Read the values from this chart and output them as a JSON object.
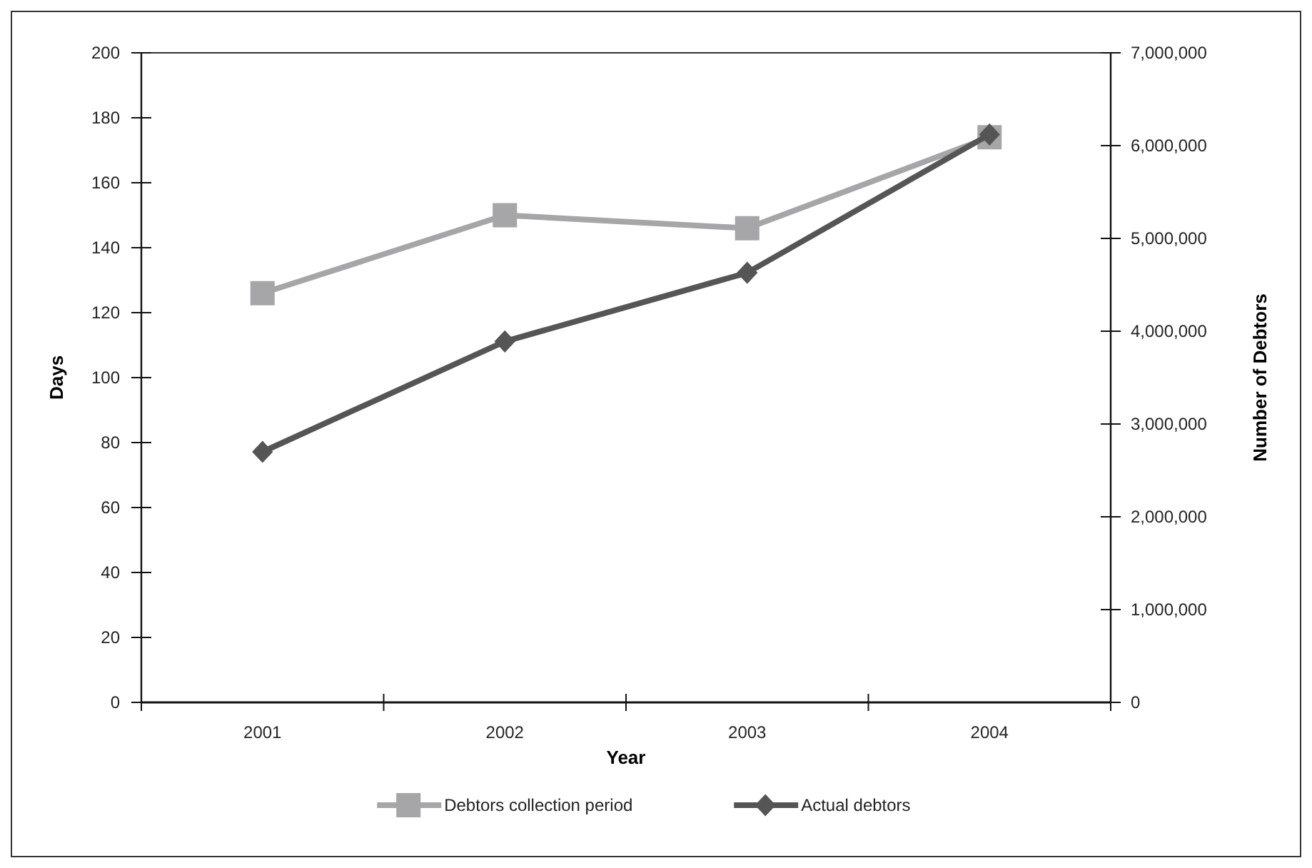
{
  "chart_data": {
    "type": "line",
    "xlabel": "Year",
    "ylabel": "Days",
    "y2label": "Number of Debtors",
    "categories": [
      "2001",
      "2002",
      "2003",
      "2004"
    ],
    "ylim": [
      0,
      200
    ],
    "yticks": [
      0,
      20,
      40,
      60,
      80,
      100,
      120,
      140,
      160,
      180,
      200
    ],
    "y2lim": [
      0,
      7000000
    ],
    "y2ticks": [
      {
        "value": 0,
        "label": "0"
      },
      {
        "value": 1000000,
        "label": "1,000,000"
      },
      {
        "value": 2000000,
        "label": "2,000,000"
      },
      {
        "value": 3000000,
        "label": "3,000,000"
      },
      {
        "value": 4000000,
        "label": "4,000,000"
      },
      {
        "value": 5000000,
        "label": "5,000,000"
      },
      {
        "value": 6000000,
        "label": "6,000,000"
      },
      {
        "value": 7000000,
        "label": "7,000,000"
      }
    ],
    "series": [
      {
        "name": "Debtors collection period",
        "color": "#a6a6a8",
        "marker": "square",
        "values": [
          126,
          150,
          146,
          174
        ]
      },
      {
        "name": "Actual debtors",
        "color": "#555555",
        "marker": "diamond",
        "axis": "y2",
        "values": [
          2700000,
          3890000,
          4630000,
          6120000
        ]
      }
    ],
    "legend": "bottom",
    "grid": false
  }
}
